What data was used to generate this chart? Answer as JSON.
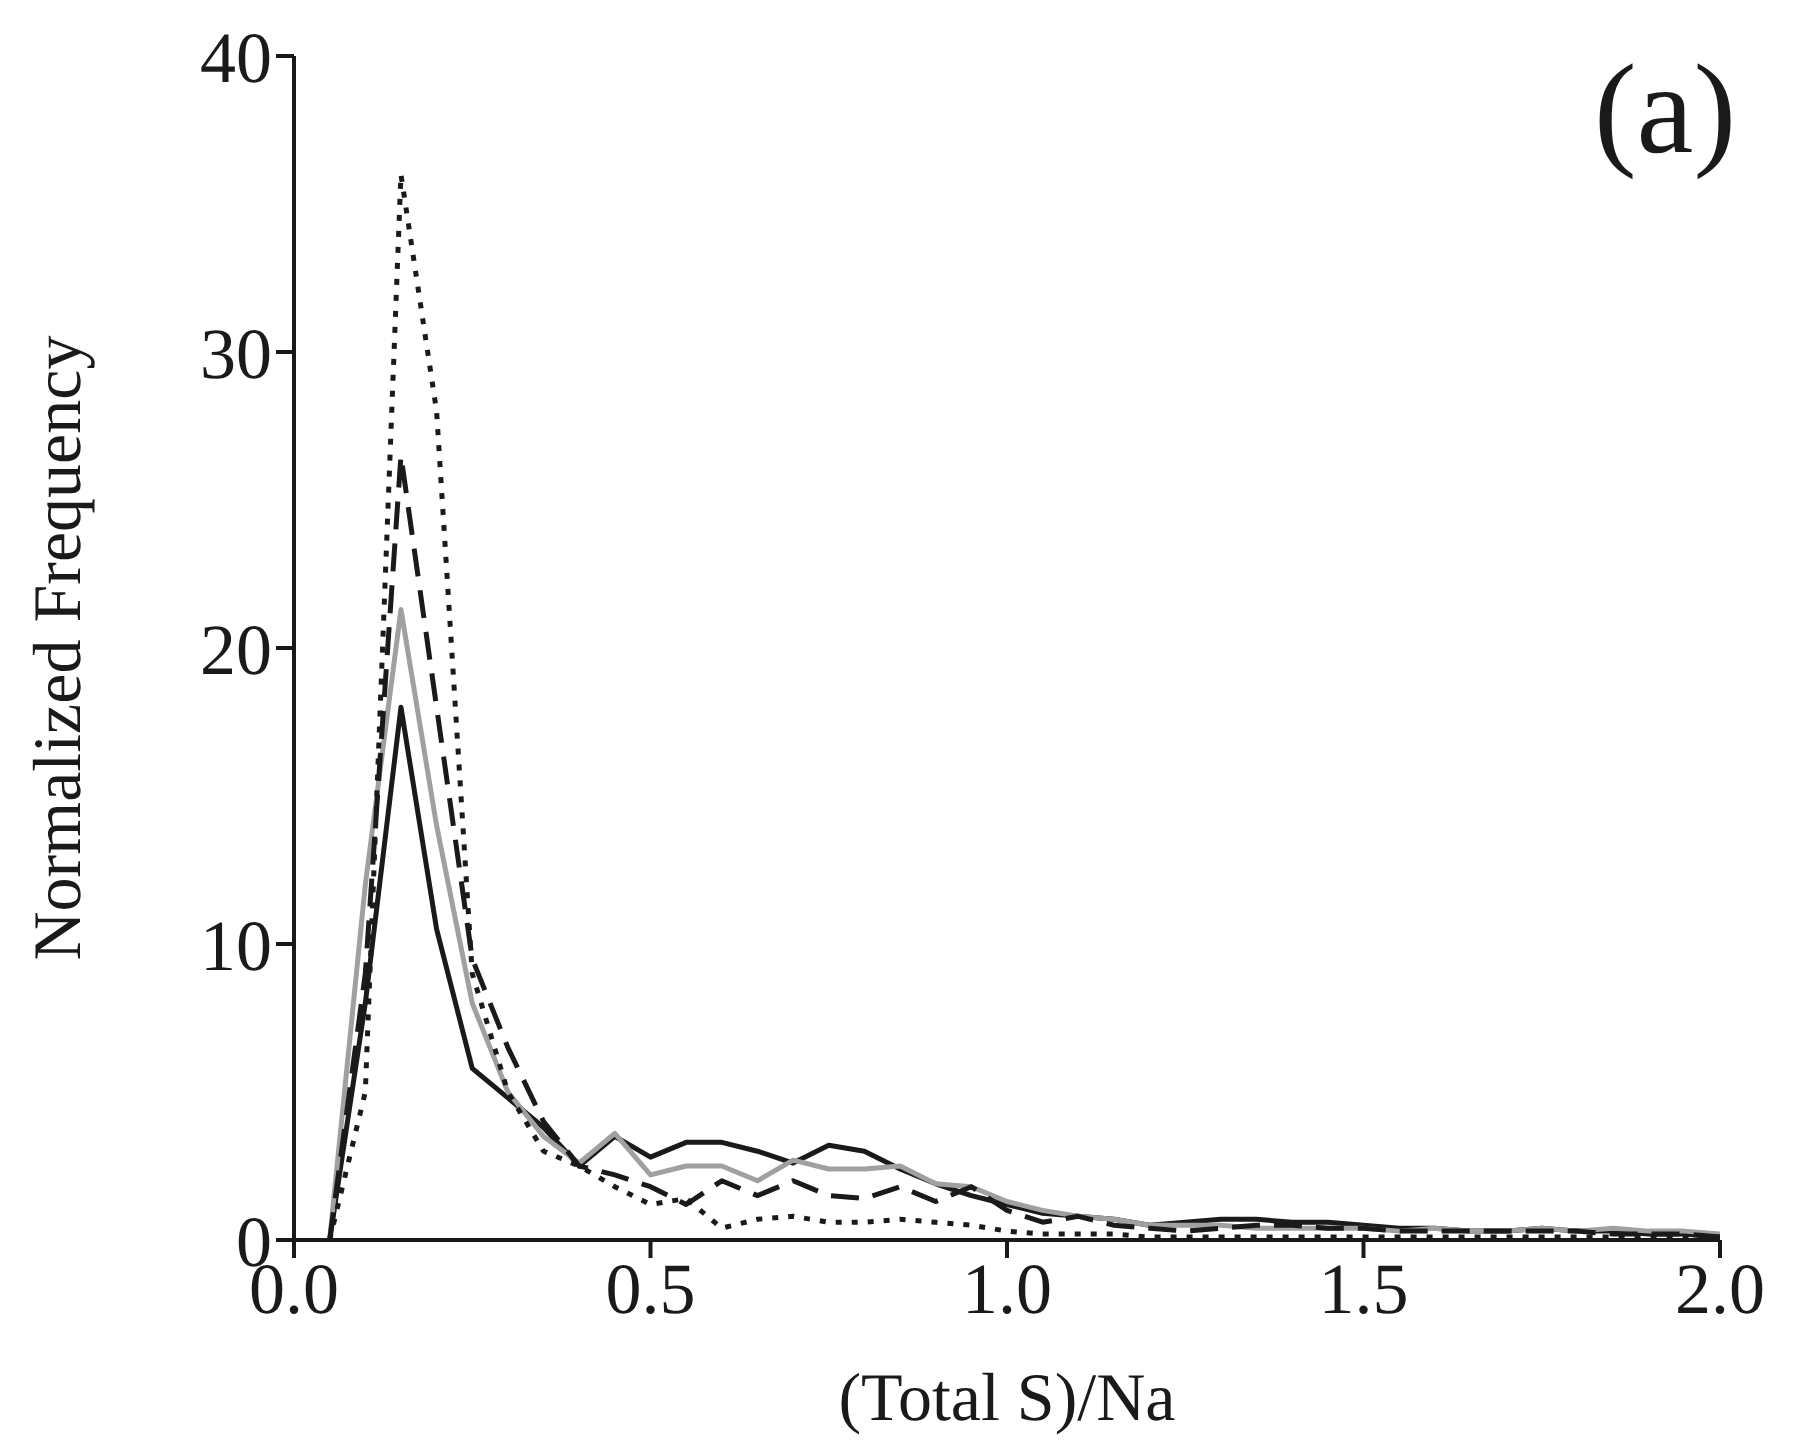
{
  "chart_data": {
    "type": "line",
    "xlabel": "(Total S)/Na",
    "ylabel": "Normalized Frequency",
    "annotations": [
      "(a)"
    ],
    "x": [
      0.05,
      0.1,
      0.15,
      0.2,
      0.25,
      0.3,
      0.35,
      0.4,
      0.45,
      0.5,
      0.55,
      0.6,
      0.65,
      0.7,
      0.75,
      0.8,
      0.85,
      0.9,
      0.95,
      1.0,
      1.05,
      1.1,
      1.15,
      1.2,
      1.25,
      1.3,
      1.35,
      1.4,
      1.45,
      1.5,
      1.55,
      1.6,
      1.65,
      1.7,
      1.75,
      1.8,
      1.85,
      1.9,
      1.95,
      2.0
    ],
    "series": [
      {
        "color": "#1a1a1a",
        "line_style": "solid",
        "values": [
          0,
          8,
          18,
          10.5,
          5.8,
          4.8,
          3.8,
          2.5,
          3.5,
          2.8,
          3.3,
          3.3,
          3.0,
          2.6,
          3.2,
          3.0,
          2.4,
          1.9,
          1.5,
          1.2,
          0.9,
          0.8,
          0.7,
          0.5,
          0.6,
          0.7,
          0.7,
          0.6,
          0.6,
          0.5,
          0.4,
          0.4,
          0.3,
          0.3,
          0.4,
          0.3,
          0.3,
          0.2,
          0.2,
          0.1
        ]
      },
      {
        "color": "#a0a0a0",
        "line_style": "solid",
        "values": [
          0,
          12,
          21.3,
          14,
          8,
          5,
          3.5,
          2.6,
          3.6,
          2.2,
          2.5,
          2.5,
          2.0,
          2.7,
          2.4,
          2.4,
          2.5,
          1.9,
          1.8,
          1.3,
          1.0,
          0.8,
          0.7,
          0.5,
          0.5,
          0.5,
          0.4,
          0.4,
          0.4,
          0.4,
          0.3,
          0.4,
          0.3,
          0.3,
          0.4,
          0.3,
          0.4,
          0.3,
          0.3,
          0.2
        ]
      },
      {
        "color": "#1a1a1a",
        "line_style": "dashed",
        "values": [
          0,
          9,
          26.5,
          18,
          9.5,
          6.5,
          4,
          2.5,
          2.2,
          1.8,
          1.2,
          2.0,
          1.5,
          2.0,
          1.5,
          1.4,
          1.8,
          1.3,
          1.8,
          1.0,
          0.6,
          0.8,
          0.5,
          0.4,
          0.3,
          0.4,
          0.5,
          0.5,
          0.4,
          0.4,
          0.3,
          0.3,
          0.3,
          0.3,
          0.3,
          0.3,
          0.2,
          0.2,
          0.2,
          0.1
        ]
      },
      {
        "color": "#1a1a1a",
        "line_style": "dotted",
        "values": [
          0,
          5,
          36,
          28,
          9,
          5,
          3,
          2.5,
          1.8,
          1.2,
          1.4,
          0.4,
          0.7,
          0.8,
          0.6,
          0.6,
          0.7,
          0.6,
          0.5,
          0.3,
          0.2,
          0.2,
          0.2,
          0.1,
          0.1,
          0.1,
          0.1,
          0.1,
          0.1,
          0.1,
          0.1,
          0.1,
          0.1,
          0.1,
          0.1,
          0.1,
          0.1,
          0.1,
          0.1,
          0.1
        ]
      }
    ],
    "xlim": [
      0,
      2.0
    ],
    "xticks": [
      {
        "value": 0,
        "label": "0.0"
      },
      0.5,
      {
        "value": 1,
        "label": "1.0"
      },
      1.5,
      {
        "value": 2,
        "label": "2.0"
      }
    ],
    "ylim": [
      0,
      40
    ],
    "yticks": [
      0,
      10,
      20,
      30,
      40
    ],
    "grid": false,
    "marker": "none"
  }
}
